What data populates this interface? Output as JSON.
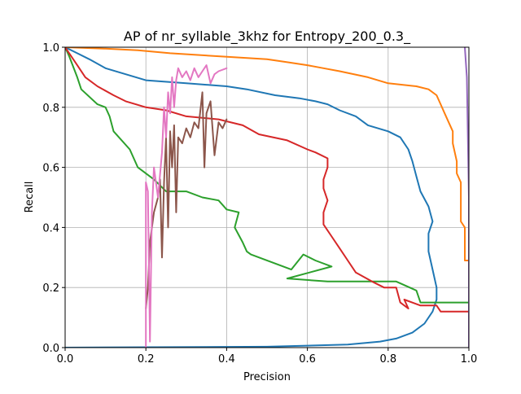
{
  "chart_data": {
    "type": "line",
    "title": "AP of nr_syllable_3khz for Entropy_200_0.3_",
    "xlabel": "Precision",
    "ylabel": "Recall",
    "xlim": [
      0,
      1
    ],
    "ylim": [
      0,
      1
    ],
    "xticks": [
      "0.0",
      "0.2",
      "0.4",
      "0.6",
      "0.8",
      "1.0"
    ],
    "yticks": [
      "0.0",
      "0.2",
      "0.4",
      "0.6",
      "0.8",
      "1.0"
    ],
    "grid": true,
    "legend": "none",
    "series": [
      {
        "color": "#1f77b4",
        "points": [
          [
            0.0,
            0.0
          ],
          [
            0.5,
            0.003
          ],
          [
            0.7,
            0.01
          ],
          [
            0.78,
            0.02
          ],
          [
            0.82,
            0.03
          ],
          [
            0.86,
            0.05
          ],
          [
            0.89,
            0.08
          ],
          [
            0.91,
            0.12
          ],
          [
            0.92,
            0.16
          ],
          [
            0.92,
            0.2
          ],
          [
            0.91,
            0.26
          ],
          [
            0.9,
            0.32
          ],
          [
            0.9,
            0.38
          ],
          [
            0.91,
            0.42
          ],
          [
            0.9,
            0.47
          ],
          [
            0.88,
            0.52
          ],
          [
            0.87,
            0.57
          ],
          [
            0.86,
            0.62
          ],
          [
            0.85,
            0.66
          ],
          [
            0.83,
            0.7
          ],
          [
            0.8,
            0.72
          ],
          [
            0.75,
            0.74
          ],
          [
            0.72,
            0.77
          ],
          [
            0.68,
            0.79
          ],
          [
            0.65,
            0.81
          ],
          [
            0.62,
            0.82
          ],
          [
            0.58,
            0.83
          ],
          [
            0.52,
            0.84
          ],
          [
            0.45,
            0.86
          ],
          [
            0.4,
            0.87
          ],
          [
            0.3,
            0.88
          ],
          [
            0.2,
            0.89
          ],
          [
            0.15,
            0.91
          ],
          [
            0.1,
            0.93
          ],
          [
            0.06,
            0.96
          ],
          [
            0.03,
            0.98
          ],
          [
            0.0,
            1.0
          ]
        ]
      },
      {
        "color": "#ff7f0e",
        "points": [
          [
            1.0,
            0.29
          ],
          [
            0.99,
            0.29
          ],
          [
            0.99,
            0.4
          ],
          [
            0.98,
            0.42
          ],
          [
            0.98,
            0.55
          ],
          [
            0.97,
            0.58
          ],
          [
            0.97,
            0.62
          ],
          [
            0.96,
            0.68
          ],
          [
            0.96,
            0.72
          ],
          [
            0.95,
            0.75
          ],
          [
            0.94,
            0.78
          ],
          [
            0.93,
            0.81
          ],
          [
            0.92,
            0.84
          ],
          [
            0.9,
            0.86
          ],
          [
            0.87,
            0.87
          ],
          [
            0.8,
            0.88
          ],
          [
            0.75,
            0.9
          ],
          [
            0.68,
            0.92
          ],
          [
            0.64,
            0.93
          ],
          [
            0.6,
            0.94
          ],
          [
            0.55,
            0.95
          ],
          [
            0.5,
            0.96
          ],
          [
            0.38,
            0.97
          ],
          [
            0.26,
            0.98
          ],
          [
            0.18,
            0.99
          ],
          [
            0.1,
            0.995
          ],
          [
            0.0,
            1.0
          ]
        ]
      },
      {
        "color": "#2ca02c",
        "points": [
          [
            1.0,
            0.15
          ],
          [
            0.88,
            0.15
          ],
          [
            0.87,
            0.19
          ],
          [
            0.82,
            0.22
          ],
          [
            0.7,
            0.22
          ],
          [
            0.65,
            0.22
          ],
          [
            0.55,
            0.23
          ],
          [
            0.66,
            0.27
          ],
          [
            0.62,
            0.29
          ],
          [
            0.59,
            0.31
          ],
          [
            0.56,
            0.26
          ],
          [
            0.46,
            0.31
          ],
          [
            0.45,
            0.32
          ],
          [
            0.44,
            0.35
          ],
          [
            0.42,
            0.4
          ],
          [
            0.43,
            0.45
          ],
          [
            0.4,
            0.46
          ],
          [
            0.38,
            0.49
          ],
          [
            0.34,
            0.5
          ],
          [
            0.3,
            0.52
          ],
          [
            0.25,
            0.52
          ],
          [
            0.22,
            0.56
          ],
          [
            0.18,
            0.6
          ],
          [
            0.16,
            0.66
          ],
          [
            0.12,
            0.72
          ],
          [
            0.11,
            0.77
          ],
          [
            0.1,
            0.8
          ],
          [
            0.08,
            0.81
          ],
          [
            0.04,
            0.86
          ],
          [
            0.03,
            0.9
          ],
          [
            0.01,
            0.97
          ],
          [
            0.0,
            1.0
          ]
        ]
      },
      {
        "color": "#d62728",
        "points": [
          [
            1.0,
            0.12
          ],
          [
            0.93,
            0.12
          ],
          [
            0.92,
            0.14
          ],
          [
            0.88,
            0.14
          ],
          [
            0.84,
            0.16
          ],
          [
            0.85,
            0.13
          ],
          [
            0.83,
            0.15
          ],
          [
            0.82,
            0.2
          ],
          [
            0.79,
            0.2
          ],
          [
            0.76,
            0.22
          ],
          [
            0.72,
            0.25
          ],
          [
            0.7,
            0.29
          ],
          [
            0.68,
            0.33
          ],
          [
            0.66,
            0.37
          ],
          [
            0.64,
            0.41
          ],
          [
            0.64,
            0.45
          ],
          [
            0.65,
            0.49
          ],
          [
            0.64,
            0.53
          ],
          [
            0.64,
            0.56
          ],
          [
            0.65,
            0.6
          ],
          [
            0.65,
            0.63
          ],
          [
            0.62,
            0.65
          ],
          [
            0.6,
            0.66
          ],
          [
            0.55,
            0.69
          ],
          [
            0.48,
            0.71
          ],
          [
            0.44,
            0.74
          ],
          [
            0.38,
            0.76
          ],
          [
            0.3,
            0.77
          ],
          [
            0.25,
            0.79
          ],
          [
            0.2,
            0.8
          ],
          [
            0.15,
            0.82
          ],
          [
            0.12,
            0.84
          ],
          [
            0.08,
            0.87
          ],
          [
            0.05,
            0.9
          ],
          [
            0.03,
            0.94
          ],
          [
            0.01,
            0.98
          ],
          [
            0.0,
            1.0
          ]
        ]
      },
      {
        "color": "#8c564b",
        "points": [
          [
            0.2,
            0.13
          ],
          [
            0.205,
            0.2
          ],
          [
            0.21,
            0.35
          ],
          [
            0.22,
            0.45
          ],
          [
            0.23,
            0.5
          ],
          [
            0.235,
            0.56
          ],
          [
            0.24,
            0.3
          ],
          [
            0.245,
            0.55
          ],
          [
            0.25,
            0.7
          ],
          [
            0.255,
            0.4
          ],
          [
            0.26,
            0.72
          ],
          [
            0.265,
            0.6
          ],
          [
            0.27,
            0.74
          ],
          [
            0.275,
            0.45
          ],
          [
            0.28,
            0.7
          ],
          [
            0.29,
            0.68
          ],
          [
            0.3,
            0.73
          ],
          [
            0.31,
            0.7
          ],
          [
            0.32,
            0.75
          ],
          [
            0.33,
            0.73
          ],
          [
            0.34,
            0.85
          ],
          [
            0.345,
            0.6
          ],
          [
            0.35,
            0.78
          ],
          [
            0.36,
            0.82
          ],
          [
            0.37,
            0.64
          ],
          [
            0.38,
            0.75
          ],
          [
            0.39,
            0.73
          ],
          [
            0.4,
            0.76
          ]
        ]
      },
      {
        "color": "#e377c2",
        "points": [
          [
            0.2,
            0.0
          ],
          [
            0.2,
            0.55
          ],
          [
            0.205,
            0.52
          ],
          [
            0.21,
            0.02
          ],
          [
            0.215,
            0.45
          ],
          [
            0.22,
            0.6
          ],
          [
            0.23,
            0.5
          ],
          [
            0.24,
            0.65
          ],
          [
            0.245,
            0.8
          ],
          [
            0.25,
            0.7
          ],
          [
            0.255,
            0.85
          ],
          [
            0.26,
            0.78
          ],
          [
            0.265,
            0.9
          ],
          [
            0.27,
            0.8
          ],
          [
            0.275,
            0.89
          ],
          [
            0.28,
            0.93
          ],
          [
            0.29,
            0.9
          ],
          [
            0.3,
            0.92
          ],
          [
            0.31,
            0.89
          ],
          [
            0.32,
            0.93
          ],
          [
            0.33,
            0.9
          ],
          [
            0.34,
            0.92
          ],
          [
            0.35,
            0.94
          ],
          [
            0.36,
            0.88
          ],
          [
            0.37,
            0.91
          ],
          [
            0.38,
            0.92
          ],
          [
            0.4,
            0.93
          ]
        ]
      },
      {
        "color": "#9467bd",
        "points": [
          [
            1.0,
            0.0
          ],
          [
            1.0,
            0.5
          ],
          [
            0.995,
            0.9
          ],
          [
            0.99,
            1.0
          ]
        ]
      }
    ]
  }
}
